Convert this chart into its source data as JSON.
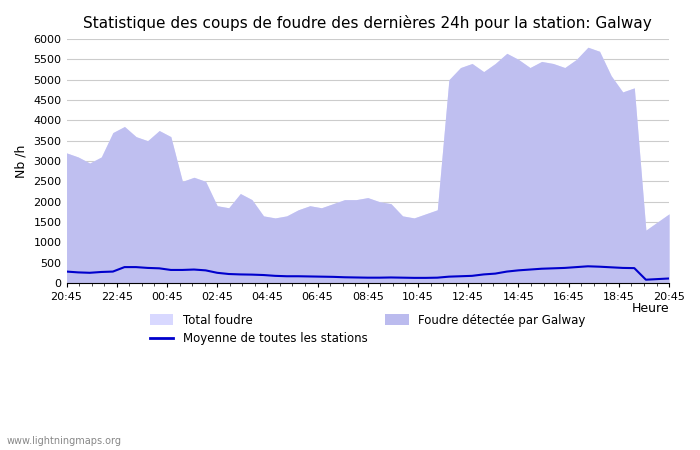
{
  "title": "Statistique des coups de foudre des dernières 24h pour la station: Galway",
  "xlabel": "Heure",
  "ylabel": "Nb /h",
  "ylim": [
    0,
    6000
  ],
  "yticks": [
    0,
    500,
    1000,
    1500,
    2000,
    2500,
    3000,
    3500,
    4000,
    4500,
    5000,
    5500,
    6000
  ],
  "x_labels": [
    "20:45",
    "22:45",
    "00:45",
    "02:45",
    "04:45",
    "06:45",
    "08:45",
    "10:45",
    "12:45",
    "14:45",
    "16:45",
    "18:45",
    "20:45"
  ],
  "watermark": "www.lightningmaps.org",
  "color_total": "#ccccff",
  "color_galway": "#aaaaee",
  "color_moyenne": "#0000cc",
  "total_foudre": [
    3200,
    3100,
    2950,
    3100,
    3700,
    3850,
    3600,
    3500,
    3750,
    3600,
    2500,
    2600,
    2500,
    1900,
    1850,
    2200,
    2050,
    1650,
    1600,
    1650,
    1800,
    1900,
    1850,
    1950,
    2050,
    2050,
    2100,
    2000,
    1950,
    1650,
    1600,
    1700,
    1800,
    5000,
    5300,
    5400,
    5200,
    5400,
    5650,
    5500,
    5300,
    5450,
    5400,
    5300,
    5500,
    5800,
    5700,
    5100,
    4700,
    4800,
    1300,
    1500,
    1700
  ],
  "galway_foudre": [
    3200,
    3100,
    2950,
    3100,
    3700,
    3850,
    3600,
    3500,
    3750,
    3600,
    2500,
    2600,
    2500,
    1900,
    1850,
    2200,
    2050,
    1650,
    1600,
    1650,
    1800,
    1900,
    1850,
    1950,
    2050,
    2050,
    2100,
    2000,
    1950,
    1650,
    1600,
    1700,
    1800,
    5000,
    5300,
    5400,
    5200,
    5400,
    5650,
    5500,
    5300,
    5450,
    5400,
    5300,
    5500,
    5800,
    5700,
    5100,
    4700,
    4800,
    1300,
    1500,
    1700
  ],
  "moyenne": [
    280,
    260,
    250,
    270,
    280,
    390,
    390,
    370,
    360,
    320,
    320,
    330,
    310,
    250,
    220,
    210,
    205,
    195,
    175,
    165,
    165,
    160,
    155,
    150,
    140,
    135,
    130,
    130,
    135,
    130,
    125,
    125,
    130,
    155,
    165,
    175,
    210,
    230,
    280,
    310,
    330,
    350,
    360,
    370,
    390,
    410,
    400,
    385,
    370,
    365,
    80,
    95,
    110
  ]
}
